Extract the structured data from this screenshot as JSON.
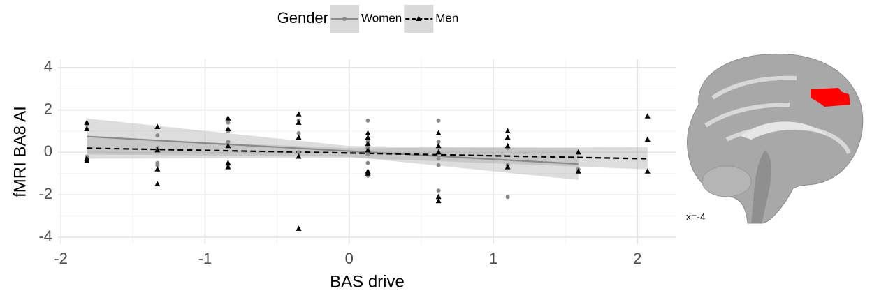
{
  "chart_data": {
    "type": "scatter",
    "legend_title": "Gender",
    "legend_position": "top",
    "x_label": "BAS drive",
    "y_label": "fMRI BA8 AI",
    "xlim": [
      -2.02,
      2.27
    ],
    "ylim": [
      -4.33,
      4.39
    ],
    "xticks": [
      -2,
      -1,
      0,
      1,
      2
    ],
    "yticks": [
      -4,
      -2,
      0,
      2,
      4
    ],
    "xminor": [
      -1.5,
      -0.5,
      0.5,
      1.5
    ],
    "yminor": [
      -3,
      -1,
      1,
      3
    ],
    "grid": true,
    "series": [
      {
        "name": "Women",
        "color": "#8a8a8a",
        "marker": "circle",
        "dash": false,
        "x": [
          -1.82,
          -1.82,
          -1.82,
          -1.82,
          -1.33,
          -1.33,
          -1.33,
          -1.33,
          -0.84,
          -0.84,
          -0.84,
          -0.84,
          -0.35,
          -0.35,
          -0.35,
          0.13,
          0.13,
          0.13,
          0.13,
          0.13,
          0.13,
          0.62,
          0.62,
          0.62,
          0.62,
          0.62,
          0.62,
          1.1,
          1.1,
          1.1,
          1.59
        ],
        "values": [
          1.3,
          1.1,
          -0.2,
          -0.3,
          0.8,
          0.2,
          -0.5,
          -0.6,
          1.4,
          1.0,
          0.5,
          -0.6,
          1.5,
          0.9,
          0.0,
          1.5,
          0.5,
          0.2,
          -0.1,
          -0.5,
          -1.1,
          1.5,
          0.5,
          0.0,
          -0.3,
          -0.6,
          -1.8,
          0.2,
          -0.6,
          -2.1,
          -0.8
        ],
        "fit": {
          "x": [
            -1.82,
            0,
            1.59
          ],
          "y": [
            0.75,
            0.06,
            -0.55
          ],
          "lower": [
            -0.1,
            -0.2,
            -1.3
          ],
          "upper": [
            1.6,
            0.3,
            0.2
          ]
        }
      },
      {
        "name": "Men",
        "color": "#000000",
        "marker": "triangle",
        "dash": true,
        "x": [
          -1.82,
          -1.82,
          -1.82,
          -1.82,
          -1.33,
          -1.33,
          -1.33,
          -1.33,
          -0.84,
          -0.84,
          -0.84,
          -0.84,
          -0.84,
          -0.35,
          -0.35,
          -0.35,
          -0.35,
          -0.35,
          0.13,
          0.13,
          0.13,
          0.13,
          0.13,
          0.13,
          0.62,
          0.62,
          0.62,
          0.62,
          0.62,
          1.1,
          1.1,
          1.1,
          1.1,
          1.59,
          1.59,
          2.07,
          2.07,
          2.07
        ],
        "values": [
          1.4,
          1.1,
          -0.3,
          -0.4,
          1.2,
          0.1,
          -0.8,
          -1.5,
          1.6,
          1.1,
          0.3,
          -0.5,
          -0.7,
          1.8,
          1.4,
          0.7,
          -0.2,
          -3.6,
          0.9,
          0.7,
          0.4,
          0.1,
          -0.9,
          -1.0,
          0.9,
          0.3,
          0.0,
          -2.1,
          -2.3,
          1.0,
          0.7,
          0.3,
          -0.7,
          0.0,
          -0.9,
          1.7,
          0.6,
          -0.9
        ],
        "fit": {
          "x": [
            -1.82,
            0,
            2.07
          ],
          "y": [
            0.2,
            -0.03,
            -0.3
          ],
          "lower": [
            -0.3,
            -0.25,
            -0.8
          ],
          "upper": [
            0.7,
            0.2,
            0.25
          ]
        }
      }
    ]
  },
  "image": {
    "label": "x=-4"
  }
}
